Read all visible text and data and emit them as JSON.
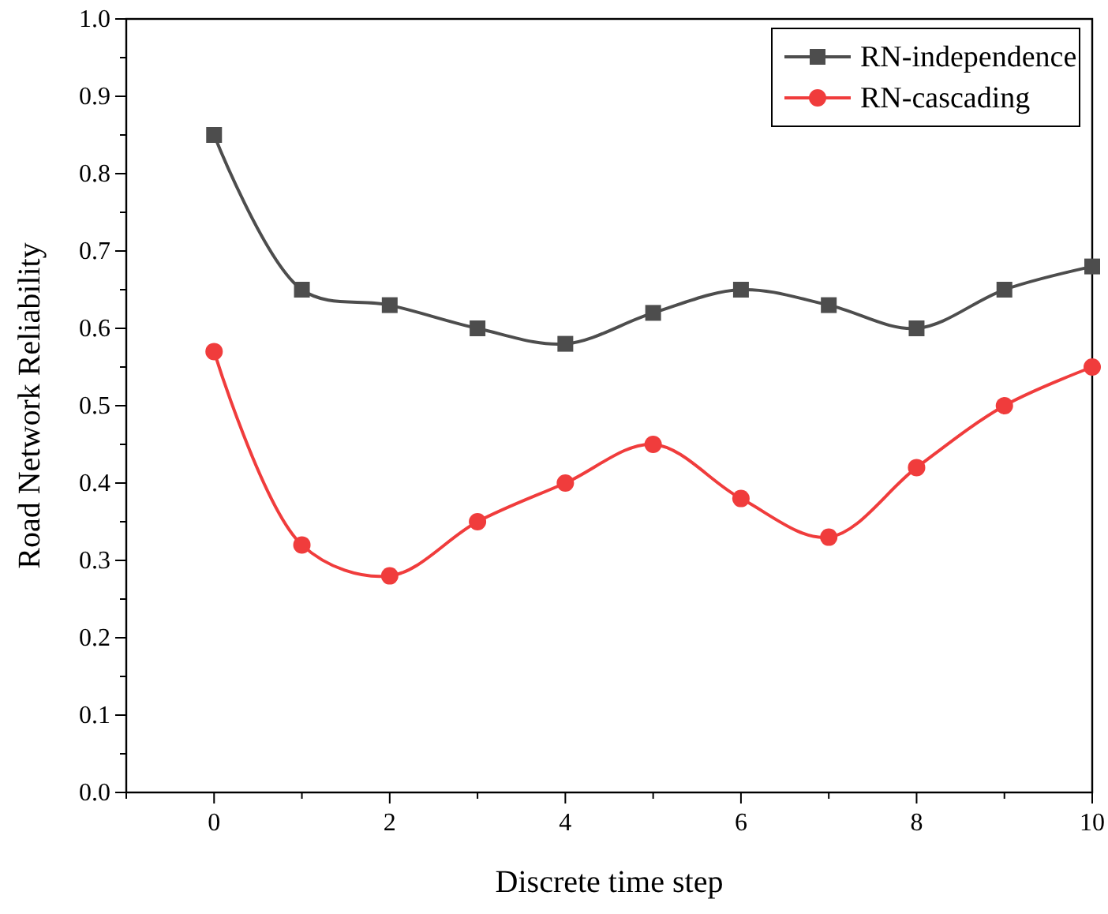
{
  "chart_data": {
    "type": "line",
    "xlabel": "Discrete time step",
    "ylabel": "Road Network Reliability",
    "x": [
      0,
      1,
      2,
      3,
      4,
      5,
      6,
      7,
      8,
      9,
      10
    ],
    "series": [
      {
        "name": "RN-independence",
        "color": "#4d4d4d",
        "marker": "square",
        "values": [
          0.85,
          0.65,
          0.63,
          0.6,
          0.58,
          0.62,
          0.65,
          0.63,
          0.6,
          0.65,
          0.68
        ]
      },
      {
        "name": "RN-cascading",
        "color": "#f03c3c",
        "marker": "circle",
        "values": [
          0.57,
          0.32,
          0.28,
          0.35,
          0.4,
          0.45,
          0.38,
          0.33,
          0.42,
          0.5,
          0.55
        ]
      }
    ],
    "xlim": [
      -1,
      10
    ],
    "xticks": [
      {
        "value": -1,
        "label": null
      },
      0,
      {
        "value": 1,
        "label": null
      },
      2,
      {
        "value": 3,
        "label": null
      },
      4,
      {
        "value": 5,
        "label": null
      },
      6,
      {
        "value": 7,
        "label": null
      },
      8,
      {
        "value": 9,
        "label": null
      },
      10
    ],
    "ylim": [
      0,
      1
    ],
    "yticks": [
      {
        "value": 0,
        "label": "0.0"
      },
      {
        "value": 0.05,
        "label": null
      },
      {
        "value": 0.1,
        "label": "0.1"
      },
      {
        "value": 0.15,
        "label": null
      },
      {
        "value": 0.2,
        "label": "0.2"
      },
      {
        "value": 0.25,
        "label": null
      },
      {
        "value": 0.3,
        "label": "0.3"
      },
      {
        "value": 0.35,
        "label": null
      },
      {
        "value": 0.4,
        "label": "0.4"
      },
      {
        "value": 0.45,
        "label": null
      },
      {
        "value": 0.5,
        "label": "0.5"
      },
      {
        "value": 0.55,
        "label": null
      },
      {
        "value": 0.6,
        "label": "0.6"
      },
      {
        "value": 0.65,
        "label": null
      },
      {
        "value": 0.7,
        "label": "0.7"
      },
      {
        "value": 0.75,
        "label": null
      },
      {
        "value": 0.8,
        "label": "0.8"
      },
      {
        "value": 0.85,
        "label": null
      },
      {
        "value": 0.9,
        "label": "0.9"
      },
      {
        "value": 0.95,
        "label": null
      },
      {
        "value": 1,
        "label": "1.0"
      }
    ],
    "grid": false,
    "legend": "top right",
    "line_style": "solid"
  }
}
